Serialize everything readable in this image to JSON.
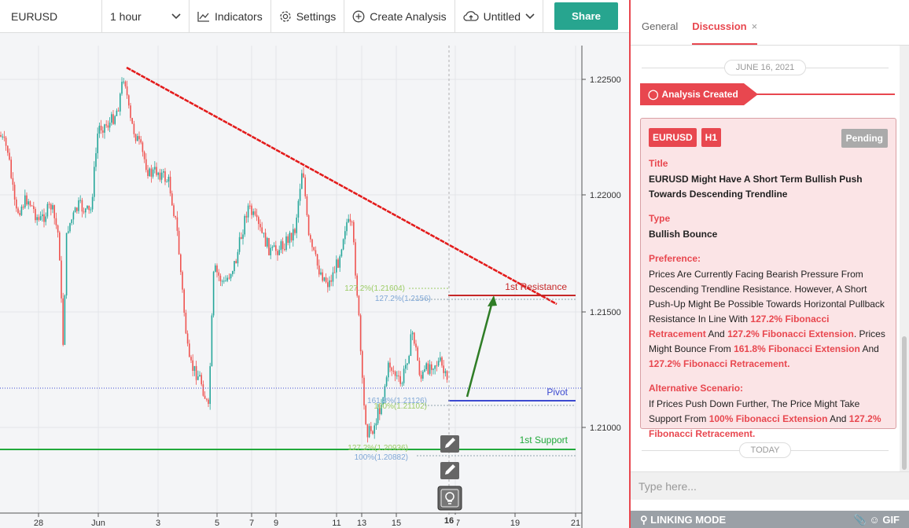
{
  "toolbar": {
    "symbol": "EURUSD",
    "interval": "1 hour",
    "indicators_label": "Indicators",
    "settings_label": "Settings",
    "create_analysis_label": "Create Analysis",
    "layout_name": "Untitled",
    "share_label": "Share"
  },
  "chart": {
    "price_axis": [
      "1.22500",
      "1.22000",
      "1.21500",
      "1.21000"
    ],
    "date_axis": [
      "28",
      "Jun",
      "3",
      "5",
      "7",
      "9",
      "11",
      "13",
      "15",
      "17",
      "19",
      "21"
    ],
    "current_date_label": "16",
    "levels": {
      "resistance": "1st Resistance",
      "pivot": "Pivot",
      "support": "1st Support"
    },
    "fib_labels": {
      "fib_127_retracement": "127.2%(1.21604)",
      "fib_127_extension": "127.2%(1.2156)",
      "fib_161_8": "161.8%(1.21126)",
      "fib_100_upper": "100%(1.21102)",
      "fib_127_lower": "127.2%(1.20936)",
      "fib_100_lower": "100%(1.20882)"
    },
    "colors": {
      "up_candle": "#26a69a",
      "down_candle": "#ef5350",
      "trendline": "#e31b1b",
      "support": "#21a93b",
      "pivot": "#3c4ad0",
      "arrow": "#2f7d26"
    }
  },
  "panel": {
    "tabs": {
      "general": "General",
      "discussion": "Discussion",
      "close": "×"
    },
    "date_separator": "JUNE 16, 2021",
    "created_tag": "Analysis Created",
    "card": {
      "symbol_badge": "EURUSD",
      "timeframe_badge": "H1",
      "status": "Pending",
      "title_label": "Title",
      "title": "EURUSD Might Have A Short Term Bullish Push Towards Descending Trendline",
      "type_label": "Type",
      "type": "Bullish Bounce",
      "preference_label": "Preference:",
      "preference_text_1": "Prices Are Currently Facing Bearish Pressure From Descending Trendline Resistance. However, A Short Push-Up Might Be Possible Towards Horizontal Pullback Resistance In Line With",
      "preference_hl_1": "127.2% Fibonacci Retracement",
      "preference_text_2": "And",
      "preference_hl_2": "127.2% Fibonacci Extension",
      "preference_text_3": ". Prices Might Bounce From",
      "preference_hl_3": "161.8% Fibonacci Extension",
      "preference_text_4": "And",
      "preference_hl_4": "127.2% Fibonacci Retracement.",
      "alt_label": "Alternative Scenario:",
      "alt_text_1": "If Prices Push Down Further, The Price Might Take Support From",
      "alt_hl_1": "100% Fibonacci Extension",
      "alt_text_2": "And",
      "alt_hl_2": "127.2% Fibonacci Retracement."
    },
    "today_separator": "TODAY",
    "message_placeholder": "Type here...",
    "linking_mode": "LINKING MODE",
    "gif_label": "GIF"
  }
}
